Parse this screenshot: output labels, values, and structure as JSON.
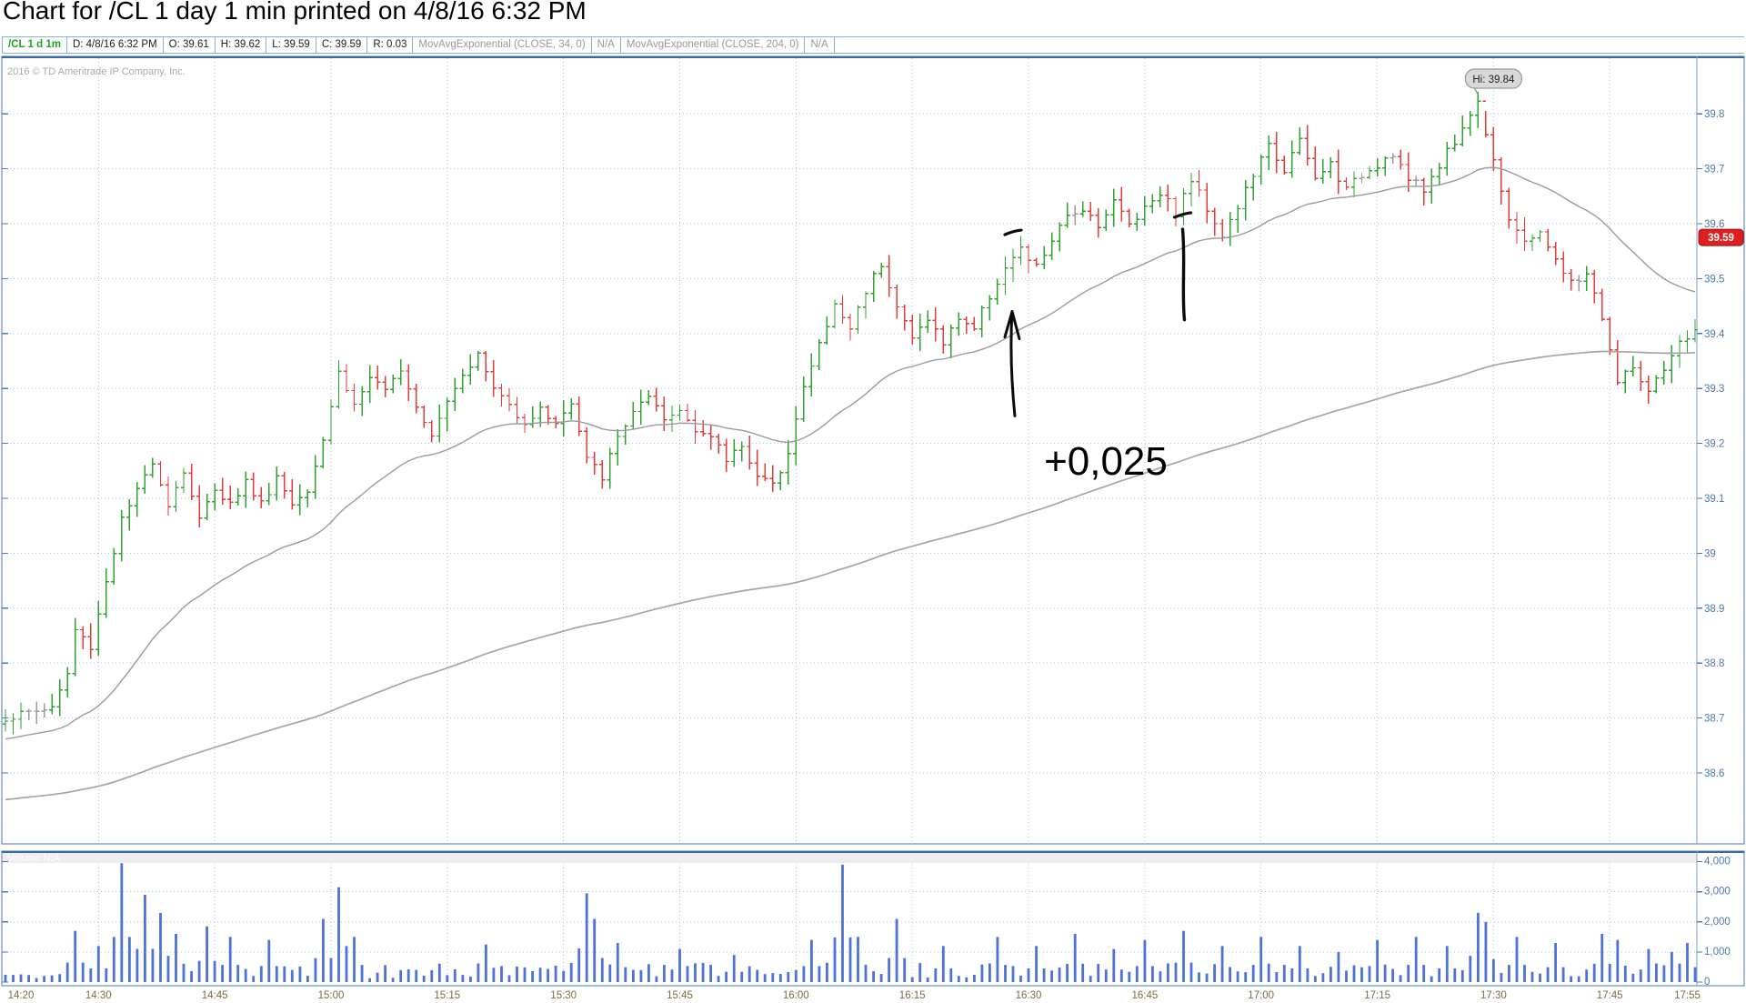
{
  "page": {
    "title": "Chart for /CL 1 day 1 min printed on 4/8/16 6:32 PM"
  },
  "header": {
    "cells": [
      {
        "text": "/CL 1 d 1m",
        "style": "symbol"
      },
      {
        "text": "D: 4/8/16 6:32 PM",
        "style": "normal"
      },
      {
        "text": "O: 39.61",
        "style": "normal"
      },
      {
        "text": "H: 39.62",
        "style": "normal"
      },
      {
        "text": "L: 39.59",
        "style": "normal"
      },
      {
        "text": "C: 39.59",
        "style": "normal"
      },
      {
        "text": "R: 0.03",
        "style": "normal"
      },
      {
        "text": "MovAvgExponential (CLOSE, 34, 0)",
        "style": "muted"
      },
      {
        "text": "N/A",
        "style": "muted"
      },
      {
        "text": "MovAvgExponential (CLOSE, 204, 0)",
        "style": "muted"
      },
      {
        "text": "N/A",
        "style": "muted"
      }
    ]
  },
  "chart": {
    "copyright": "2016 © TD Ameritrade IP Company, Inc.",
    "volume_watermark": "Volume N/A",
    "hi_bubble": {
      "text": "Hi: 39.84",
      "time": "17:28",
      "price": 39.84
    },
    "price_bubble": {
      "text": "39.59",
      "price": 39.575
    },
    "price_axis_labels": [
      {
        "text": "39.8",
        "value": 39.8
      },
      {
        "text": "39.7",
        "value": 39.7
      },
      {
        "text": "39.6",
        "value": 39.6
      },
      {
        "text": "39.5",
        "value": 39.5
      },
      {
        "text": "39.4",
        "value": 39.4
      },
      {
        "text": "39.3",
        "value": 39.3
      },
      {
        "text": "39.2",
        "value": 39.2
      },
      {
        "text": "39.1",
        "value": 39.1
      },
      {
        "text": "39",
        "value": 39.0
      },
      {
        "text": "38.9",
        "value": 38.9
      },
      {
        "text": "38.8",
        "value": 38.8
      },
      {
        "text": "38.7",
        "value": 38.7
      },
      {
        "text": "38.6",
        "value": 38.6
      }
    ],
    "volume_axis_labels": [
      {
        "text": "4,000",
        "value": 4000
      },
      {
        "text": "3,000",
        "value": 3000
      },
      {
        "text": "2,000",
        "value": 2000
      },
      {
        "text": "1,000",
        "value": 1000
      },
      {
        "text": "0",
        "value": 0
      }
    ],
    "time_axis_labels": [
      "14:20",
      "14:30",
      "14:45",
      "15:00",
      "15:15",
      "15:30",
      "15:45",
      "16:00",
      "16:15",
      "16:30",
      "16:45",
      "17:00",
      "17:15",
      "17:30",
      "17:45",
      "17:55"
    ],
    "grid_times": [
      "14:30",
      "14:45",
      "15:00",
      "15:15",
      "15:30",
      "15:45",
      "16:00",
      "16:15",
      "16:30",
      "16:45",
      "17:00",
      "17:15",
      "17:30",
      "17:45"
    ]
  },
  "annotation": {
    "label": "+0,025",
    "marks": {
      "dash1": {
        "time": "16:28",
        "price": 39.585
      },
      "arrow": {
        "time": "16:28",
        "price_tip": 39.44,
        "price_tail": 39.25
      },
      "dash2": {
        "time": "16:50",
        "price": 39.615
      },
      "vline": {
        "time": "16:50",
        "price_top": 39.59,
        "price_bottom": 39.425
      },
      "label_pos": {
        "time": "16:32",
        "price": 39.3
      }
    }
  },
  "colors": {
    "up": "#2fa32f",
    "down": "#e23c3c",
    "neutral": "#9b9b9b",
    "ema34": "#9b9b9b",
    "ema204": "#a6a6a6",
    "grid": "#aac6e0",
    "panel_border": "#4a7ab0",
    "inner_border": "#7aa0c8",
    "price_label": "#4a7ab0",
    "time_label": "#7d6a45",
    "volume_bar": "#4d72d9",
    "bubble_red": "#dc1f1f",
    "hi_bubble_bg": "#d9d9d9",
    "annotation_ink": "#0b0b0b"
  },
  "chart_data": {
    "type": "bar",
    "subtype": "ohlc-1min",
    "symbol": "/CL",
    "timeframe": "1 day 1 min",
    "printed": "4/8/16 6:32 PM",
    "x_range": [
      "14:18",
      "17:56"
    ],
    "ylim": [
      38.55,
      39.85
    ],
    "day_high": 39.84,
    "last": 39.59,
    "crosshair_bar": {
      "date": "4/8/16 6:32 PM",
      "open": 39.61,
      "high": 39.62,
      "low": 39.59,
      "close": 39.59,
      "range": 0.03
    },
    "series": [
      {
        "name": "MovAvgExponential (CLOSE, 34, 0)",
        "type": "ema",
        "period": 34,
        "value_label": "N/A"
      },
      {
        "name": "MovAvgExponential (CLOSE, 204, 0)",
        "type": "ema",
        "period": 204,
        "value_label": "N/A"
      }
    ],
    "close_path": [
      [
        "14:18",
        38.7
      ],
      [
        "14:21",
        38.71
      ],
      [
        "14:24",
        38.72
      ],
      [
        "14:26",
        38.78
      ],
      [
        "14:27",
        38.86
      ],
      [
        "14:29",
        38.83
      ],
      [
        "14:31",
        38.95
      ],
      [
        "14:33",
        39.06
      ],
      [
        "14:35",
        39.11
      ],
      [
        "14:37",
        39.17
      ],
      [
        "14:39",
        39.09
      ],
      [
        "14:41",
        39.15
      ],
      [
        "14:43",
        39.06
      ],
      [
        "14:45",
        39.12
      ],
      [
        "14:47",
        39.09
      ],
      [
        "14:49",
        39.13
      ],
      [
        "14:51",
        39.09
      ],
      [
        "14:53",
        39.14
      ],
      [
        "14:55",
        39.09
      ],
      [
        "14:57",
        39.12
      ],
      [
        "14:59",
        39.21
      ],
      [
        "15:01",
        39.33
      ],
      [
        "15:03",
        39.27
      ],
      [
        "15:05",
        39.32
      ],
      [
        "15:07",
        39.29
      ],
      [
        "15:09",
        39.34
      ],
      [
        "15:11",
        39.27
      ],
      [
        "15:13",
        39.22
      ],
      [
        "15:15",
        39.28
      ],
      [
        "15:17",
        39.33
      ],
      [
        "15:19",
        39.36
      ],
      [
        "15:21",
        39.3
      ],
      [
        "15:23",
        39.27
      ],
      [
        "15:25",
        39.24
      ],
      [
        "15:27",
        39.26
      ],
      [
        "15:29",
        39.24
      ],
      [
        "15:31",
        39.27
      ],
      [
        "15:33",
        39.17
      ],
      [
        "15:35",
        39.14
      ],
      [
        "15:37",
        39.21
      ],
      [
        "15:39",
        39.26
      ],
      [
        "15:41",
        39.28
      ],
      [
        "15:43",
        39.24
      ],
      [
        "15:45",
        39.26
      ],
      [
        "15:47",
        39.23
      ],
      [
        "15:49",
        39.21
      ],
      [
        "15:51",
        39.17
      ],
      [
        "15:53",
        39.2
      ],
      [
        "15:55",
        39.14
      ],
      [
        "15:57",
        39.12
      ],
      [
        "15:59",
        39.19
      ],
      [
        "16:01",
        39.3
      ],
      [
        "16:03",
        39.38
      ],
      [
        "16:05",
        39.45
      ],
      [
        "16:07",
        39.41
      ],
      [
        "16:09",
        39.48
      ],
      [
        "16:11",
        39.53
      ],
      [
        "16:13",
        39.45
      ],
      [
        "16:15",
        39.39
      ],
      [
        "16:17",
        39.43
      ],
      [
        "16:19",
        39.38
      ],
      [
        "16:21",
        39.43
      ],
      [
        "16:23",
        39.41
      ],
      [
        "16:25",
        39.47
      ],
      [
        "16:27",
        39.52
      ],
      [
        "16:29",
        39.55
      ],
      [
        "16:31",
        39.52
      ],
      [
        "16:33",
        39.57
      ],
      [
        "16:35",
        39.61
      ],
      [
        "16:37",
        39.63
      ],
      [
        "16:39",
        39.6
      ],
      [
        "16:41",
        39.64
      ],
      [
        "16:43",
        39.6
      ],
      [
        "16:45",
        39.63
      ],
      [
        "16:47",
        39.66
      ],
      [
        "16:49",
        39.62
      ],
      [
        "16:51",
        39.68
      ],
      [
        "16:53",
        39.63
      ],
      [
        "16:55",
        39.58
      ],
      [
        "16:57",
        39.63
      ],
      [
        "16:59",
        39.69
      ],
      [
        "17:01",
        39.74
      ],
      [
        "17:03",
        39.7
      ],
      [
        "17:05",
        39.75
      ],
      [
        "17:07",
        39.68
      ],
      [
        "17:09",
        39.71
      ],
      [
        "17:11",
        39.66
      ],
      [
        "17:13",
        39.69
      ],
      [
        "17:15",
        39.71
      ],
      [
        "17:17",
        39.73
      ],
      [
        "17:19",
        39.68
      ],
      [
        "17:21",
        39.66
      ],
      [
        "17:23",
        39.71
      ],
      [
        "17:25",
        39.75
      ],
      [
        "17:27",
        39.8
      ],
      [
        "17:28",
        39.82
      ],
      [
        "17:30",
        39.72
      ],
      [
        "17:32",
        39.61
      ],
      [
        "17:34",
        39.56
      ],
      [
        "17:36",
        39.59
      ],
      [
        "17:38",
        39.53
      ],
      [
        "17:40",
        39.49
      ],
      [
        "17:42",
        39.51
      ],
      [
        "17:44",
        39.43
      ],
      [
        "17:46",
        39.31
      ],
      [
        "17:48",
        39.34
      ],
      [
        "17:50",
        39.29
      ],
      [
        "17:52",
        39.33
      ],
      [
        "17:54",
        39.38
      ],
      [
        "17:56",
        39.41
      ]
    ],
    "volume": {
      "ylim": [
        0,
        4000
      ],
      "base_range": [
        120,
        640
      ],
      "spikes": {
        "14:27": 1700,
        "14:30": 1200,
        "14:33": 3950,
        "14:36": 2900,
        "14:38": 2300,
        "14:40": 1600,
        "14:44": 1850,
        "14:47": 1500,
        "14:52": 1400,
        "14:59": 2100,
        "15:01": 3150,
        "15:03": 1500,
        "15:20": 1250,
        "15:33": 2950,
        "15:34": 2100,
        "15:37": 1300,
        "15:45": 1100,
        "15:52": 900,
        "16:02": 1400,
        "16:06": 3900,
        "16:08": 1500,
        "16:13": 2100,
        "16:19": 1200,
        "16:26": 1500,
        "16:31": 1200,
        "16:36": 1600,
        "16:41": 1100,
        "16:45": 1400,
        "16:50": 1700,
        "16:55": 1200,
        "17:00": 1500,
        "17:05": 1200,
        "17:10": 1000,
        "17:15": 1400,
        "17:20": 1500,
        "17:24": 1200,
        "17:28": 2300,
        "17:29": 2000,
        "17:33": 1500,
        "17:38": 1300,
        "17:44": 1600,
        "17:46": 1400,
        "17:50": 1100,
        "17:53": 1000,
        "17:55": 1300
      }
    }
  },
  "generator": {
    "seed": 1337,
    "noise": 0.018,
    "wick": 0.022
  }
}
